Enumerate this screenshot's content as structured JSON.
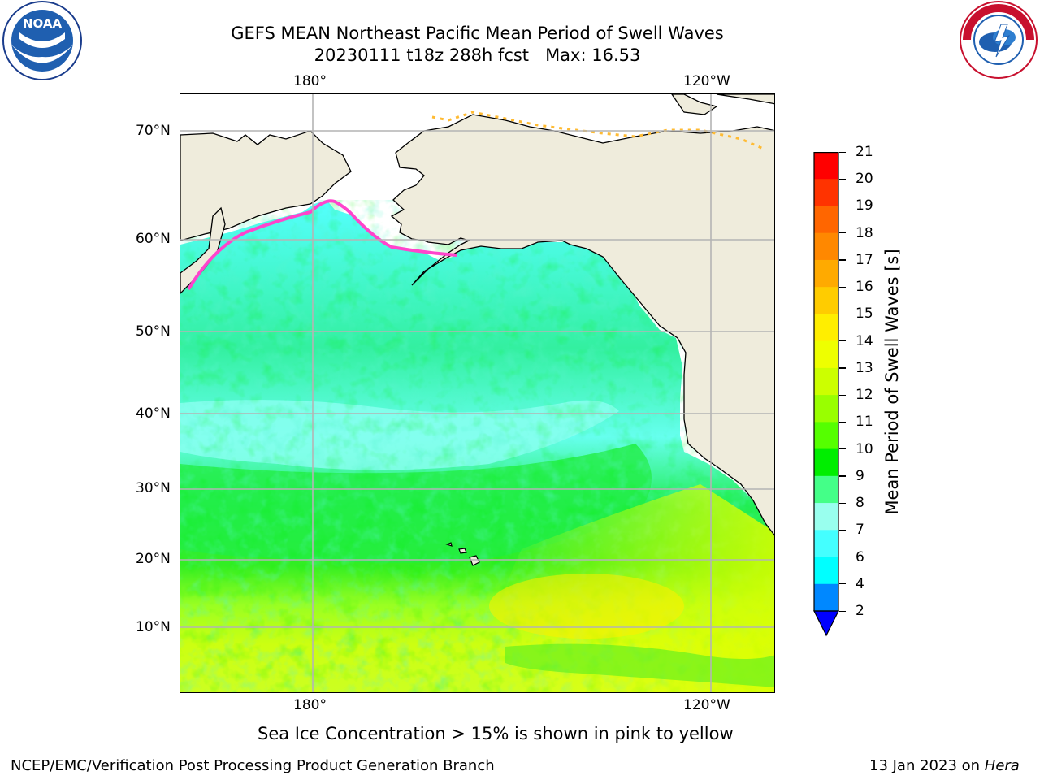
{
  "title": {
    "line1": "GEFS MEAN Northeast Pacific Mean Period of Swell Waves",
    "line2": "20230111 t18z 288h fcst   Max: 16.53"
  },
  "logos": {
    "left": {
      "icon": "noaa-logo",
      "text": "NOAA",
      "ring_text": "NATIONAL OCEANIC AND ATMOSPHERIC ADMINISTRATION · U.S. DEPARTMENT OF COMMERCE"
    },
    "right": {
      "icon": "nws-logo",
      "ring_text": "NATIONAL WEATHER SERVICE"
    }
  },
  "map": {
    "top_lon_labels": [
      "180°",
      "120°W"
    ],
    "bottom_lon_labels": [
      "180°",
      "120°W"
    ],
    "lat_labels": [
      "70°N",
      "60°N",
      "50°N",
      "40°N",
      "30°N",
      "20°N",
      "10°N"
    ],
    "colors": {
      "land": "#efecdc",
      "grid": "#b4b4b4",
      "ice": "#ff44cc"
    }
  },
  "colorbar": {
    "label": "Mean Period of Swell Waves [s]",
    "ticks": [
      "21",
      "20",
      "19",
      "18",
      "17",
      "16",
      "15",
      "14",
      "13",
      "12",
      "11",
      "10",
      "9",
      "8",
      "7",
      "6",
      "4",
      "2"
    ],
    "colors": [
      "#ff0000",
      "#ff3300",
      "#ff6600",
      "#ff8800",
      "#ffaa00",
      "#ffcc00",
      "#ffee00",
      "#eeff00",
      "#ccff00",
      "#99ff00",
      "#55ff00",
      "#00ee00",
      "#44ff88",
      "#99ffee",
      "#44ffff",
      "#00ffff",
      "#0088ff",
      "#0000ff"
    ],
    "extend": "min"
  },
  "note": "Sea Ice Concentration > 15% is shown in pink to yellow",
  "footer": {
    "left": "NCEP/EMC/Verification Post Processing Product Generation Branch",
    "right_prefix": "13 Jan 2023 on ",
    "right_machine": "Hera"
  }
}
